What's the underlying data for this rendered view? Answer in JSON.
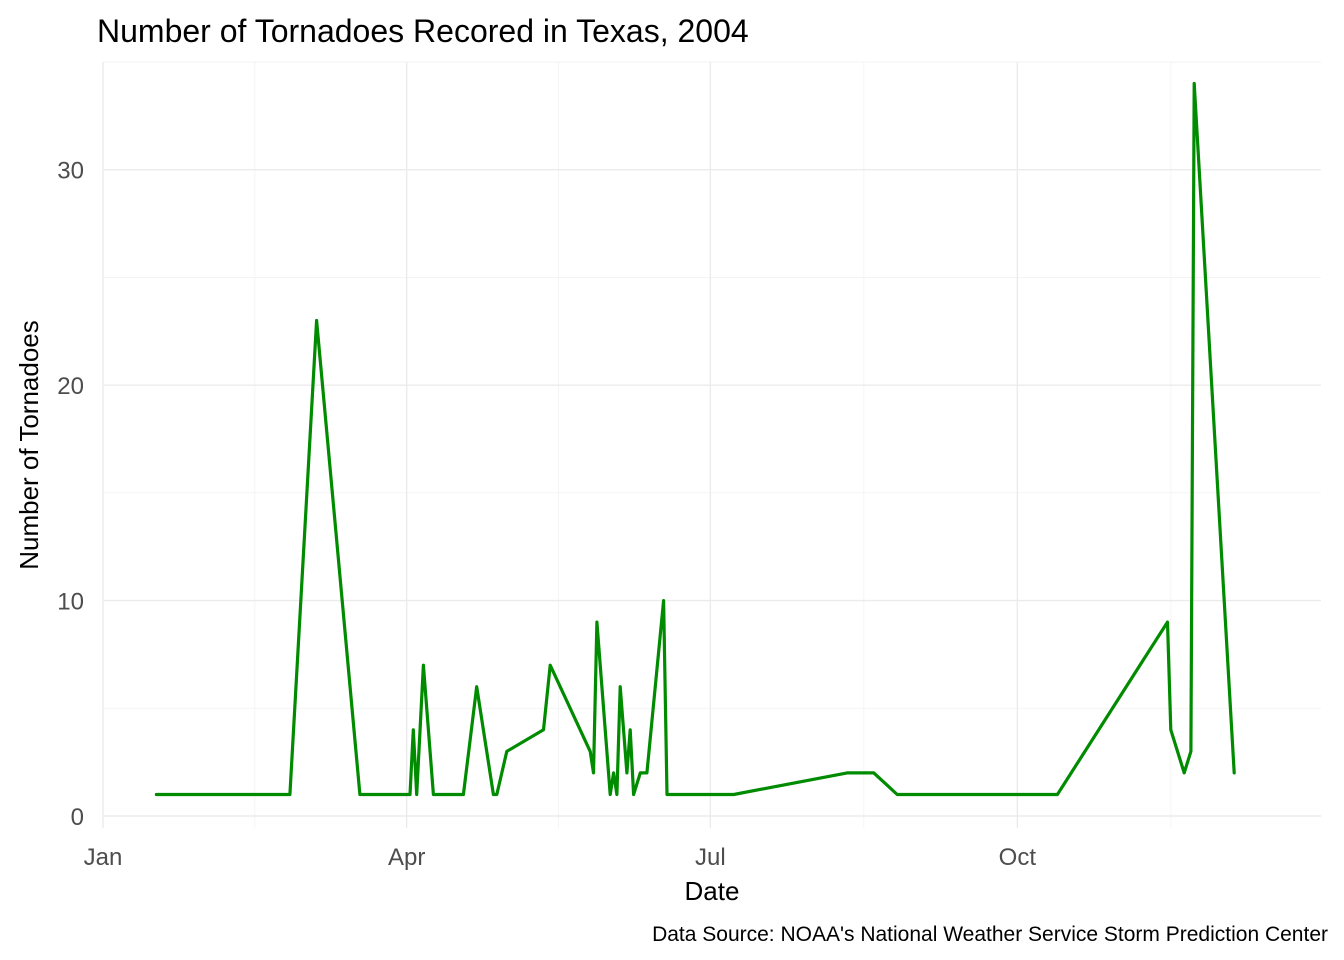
{
  "chart_data": {
    "type": "line",
    "title": "Number of Tornadoes Recored in Texas, 2004",
    "xlabel": "Date",
    "ylabel": "Number of Tornadoes",
    "caption": "Data Source: NOAA's National Weather Service Storm Prediction Center",
    "x_ticks": [
      {
        "label": "Jan",
        "date": "2004-01-01"
      },
      {
        "label": "Apr",
        "date": "2004-04-01"
      },
      {
        "label": "Jul",
        "date": "2004-07-01"
      },
      {
        "label": "Oct",
        "date": "2004-10-01"
      }
    ],
    "y_ticks": [
      0,
      10,
      20,
      30
    ],
    "xlim": [
      "2004-01-01",
      "2004-12-31"
    ],
    "ylim": [
      0,
      35
    ],
    "grid": true,
    "color": "#008B00",
    "series": [
      {
        "x": [
          "2004-01-17",
          "2004-02-26",
          "2004-03-05",
          "2004-03-18",
          "2004-04-02",
          "2004-04-03",
          "2004-04-04",
          "2004-04-06",
          "2004-04-09",
          "2004-04-18",
          "2004-04-22",
          "2004-04-27",
          "2004-04-28",
          "2004-05-01",
          "2004-05-12",
          "2004-05-14",
          "2004-05-26",
          "2004-05-27",
          "2004-05-28",
          "2004-06-01",
          "2004-06-02",
          "2004-06-03",
          "2004-06-04",
          "2004-06-06",
          "2004-06-07",
          "2004-06-08",
          "2004-06-10",
          "2004-06-11",
          "2004-06-12",
          "2004-06-17",
          "2004-06-18",
          "2004-06-19",
          "2004-06-20",
          "2004-07-08",
          "2004-08-11",
          "2004-08-19",
          "2004-08-26",
          "2004-10-13",
          "2004-11-15",
          "2004-11-16",
          "2004-11-20",
          "2004-11-22",
          "2004-11-23",
          "2004-12-05"
        ],
        "values": [
          1,
          1,
          23,
          1,
          1,
          4,
          1,
          7,
          1,
          1,
          6,
          1,
          1,
          3,
          4,
          7,
          3,
          2,
          9,
          1,
          2,
          1,
          6,
          2,
          4,
          1,
          2,
          2,
          2,
          10,
          1,
          1,
          1,
          1,
          2,
          2,
          1,
          1,
          9,
          4,
          2,
          3,
          34,
          2
        ]
      }
    ]
  }
}
